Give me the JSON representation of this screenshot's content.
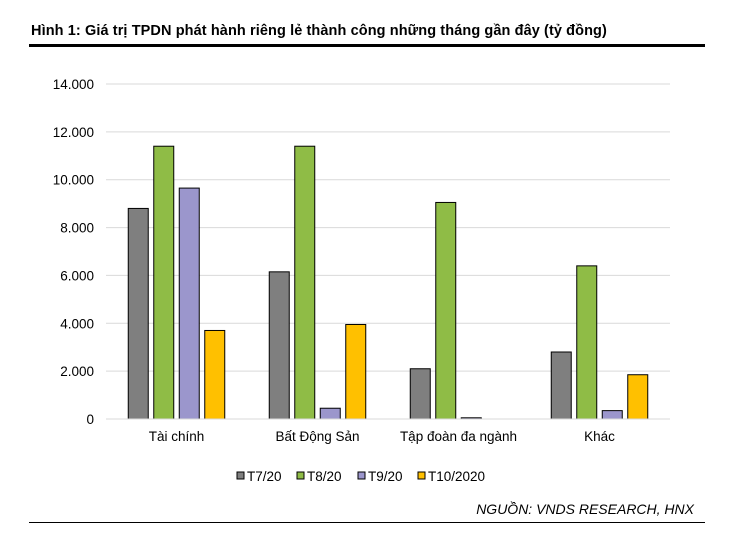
{
  "figure": {
    "title": "Hình 1: Giá trị TPDN phát hành riêng lẻ thành công những tháng gần đây (tỷ đồng)",
    "source": "NGUỒN: VNDS RESEARCH, HNX"
  },
  "chart_data": {
    "type": "bar",
    "title": "Hình 1: Giá trị TPDN phát hành riêng lẻ thành công những tháng gần đây (tỷ đồng)",
    "xlabel": "",
    "ylabel": "",
    "ylim": [
      0,
      14000
    ],
    "yticks": [
      0,
      2000,
      4000,
      6000,
      8000,
      10000,
      12000,
      14000
    ],
    "ytick_labels": [
      "0",
      "2.000",
      "4.000",
      "6.000",
      "8.000",
      "10.000",
      "12.000",
      "14.000"
    ],
    "grid": true,
    "legend": "bottom",
    "categories": [
      "Tài chính",
      "Bất Động Sản",
      "Tập đoàn đa ngành",
      "Khác"
    ],
    "series": [
      {
        "name": "T7/20",
        "color": "#7f7f7f",
        "values": [
          8800,
          6150,
          2100,
          2800
        ]
      },
      {
        "name": "T8/20",
        "color": "#8fbc46",
        "values": [
          11400,
          11400,
          9050,
          6400
        ]
      },
      {
        "name": "T9/20",
        "color": "#9b96cc",
        "values": [
          9650,
          450,
          50,
          350
        ]
      },
      {
        "name": "T10/2020",
        "color": "#ffc000",
        "values": [
          3700,
          3950,
          0,
          1850
        ]
      }
    ]
  }
}
